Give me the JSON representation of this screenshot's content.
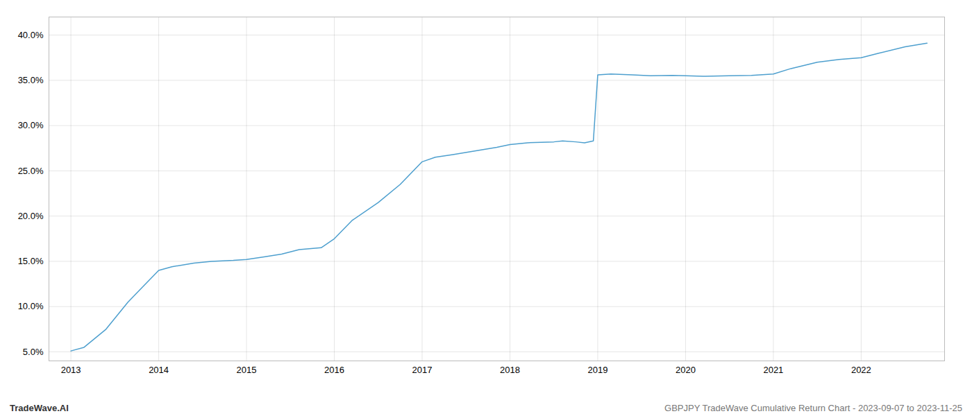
{
  "chart_data": {
    "type": "line",
    "x": [
      2013.0,
      2013.15,
      2013.4,
      2013.65,
      2013.85,
      2014.0,
      2014.15,
      2014.4,
      2014.6,
      2014.85,
      2015.0,
      2015.2,
      2015.4,
      2015.6,
      2015.85,
      2016.0,
      2016.2,
      2016.5,
      2016.75,
      2017.0,
      2017.15,
      2017.35,
      2017.6,
      2017.85,
      2018.0,
      2018.2,
      2018.5,
      2018.6,
      2018.75,
      2018.85,
      2018.95,
      2019.0,
      2019.15,
      2019.4,
      2019.6,
      2019.85,
      2020.0,
      2020.2,
      2020.5,
      2020.75,
      2021.0,
      2021.2,
      2021.5,
      2021.75,
      2022.0,
      2022.2,
      2022.5,
      2022.75
    ],
    "values": [
      5.1,
      5.5,
      7.5,
      10.5,
      12.5,
      14.0,
      14.4,
      14.8,
      15.0,
      15.1,
      15.2,
      15.5,
      15.8,
      16.3,
      16.5,
      17.5,
      19.5,
      21.5,
      23.5,
      26.0,
      26.5,
      26.8,
      27.2,
      27.6,
      27.9,
      28.1,
      28.2,
      28.3,
      28.2,
      28.1,
      28.3,
      35.6,
      35.7,
      35.6,
      35.5,
      35.55,
      35.5,
      35.45,
      35.5,
      35.55,
      35.7,
      36.3,
      37.0,
      37.3,
      37.5,
      38.0,
      38.7,
      39.1
    ],
    "color": "#4d9fce",
    "xlim": [
      2012.75,
      2022.95
    ],
    "xticks": [
      2013,
      2014,
      2015,
      2016,
      2017,
      2018,
      2019,
      2020,
      2021,
      2022
    ],
    "ylim": [
      4.0,
      42.0
    ],
    "yticks": [
      {
        "value": 5.0,
        "label": "5.0%"
      },
      {
        "value": 10.0,
        "label": "10.0%"
      },
      {
        "value": 15.0,
        "label": "15.0%"
      },
      {
        "value": 20.0,
        "label": "20.0%"
      },
      {
        "value": 25.0,
        "label": "25.0%"
      },
      {
        "value": 30.0,
        "label": "30.0%"
      },
      {
        "value": 35.0,
        "label": "35.0%"
      },
      {
        "value": 40.0,
        "label": "40.0%"
      }
    ],
    "grid": true,
    "annotations": [
      "TradeWave.AI",
      "GBPJPY TradeWave Cumulative Return Chart - 2023-09-07 to 2023-11-25"
    ]
  }
}
